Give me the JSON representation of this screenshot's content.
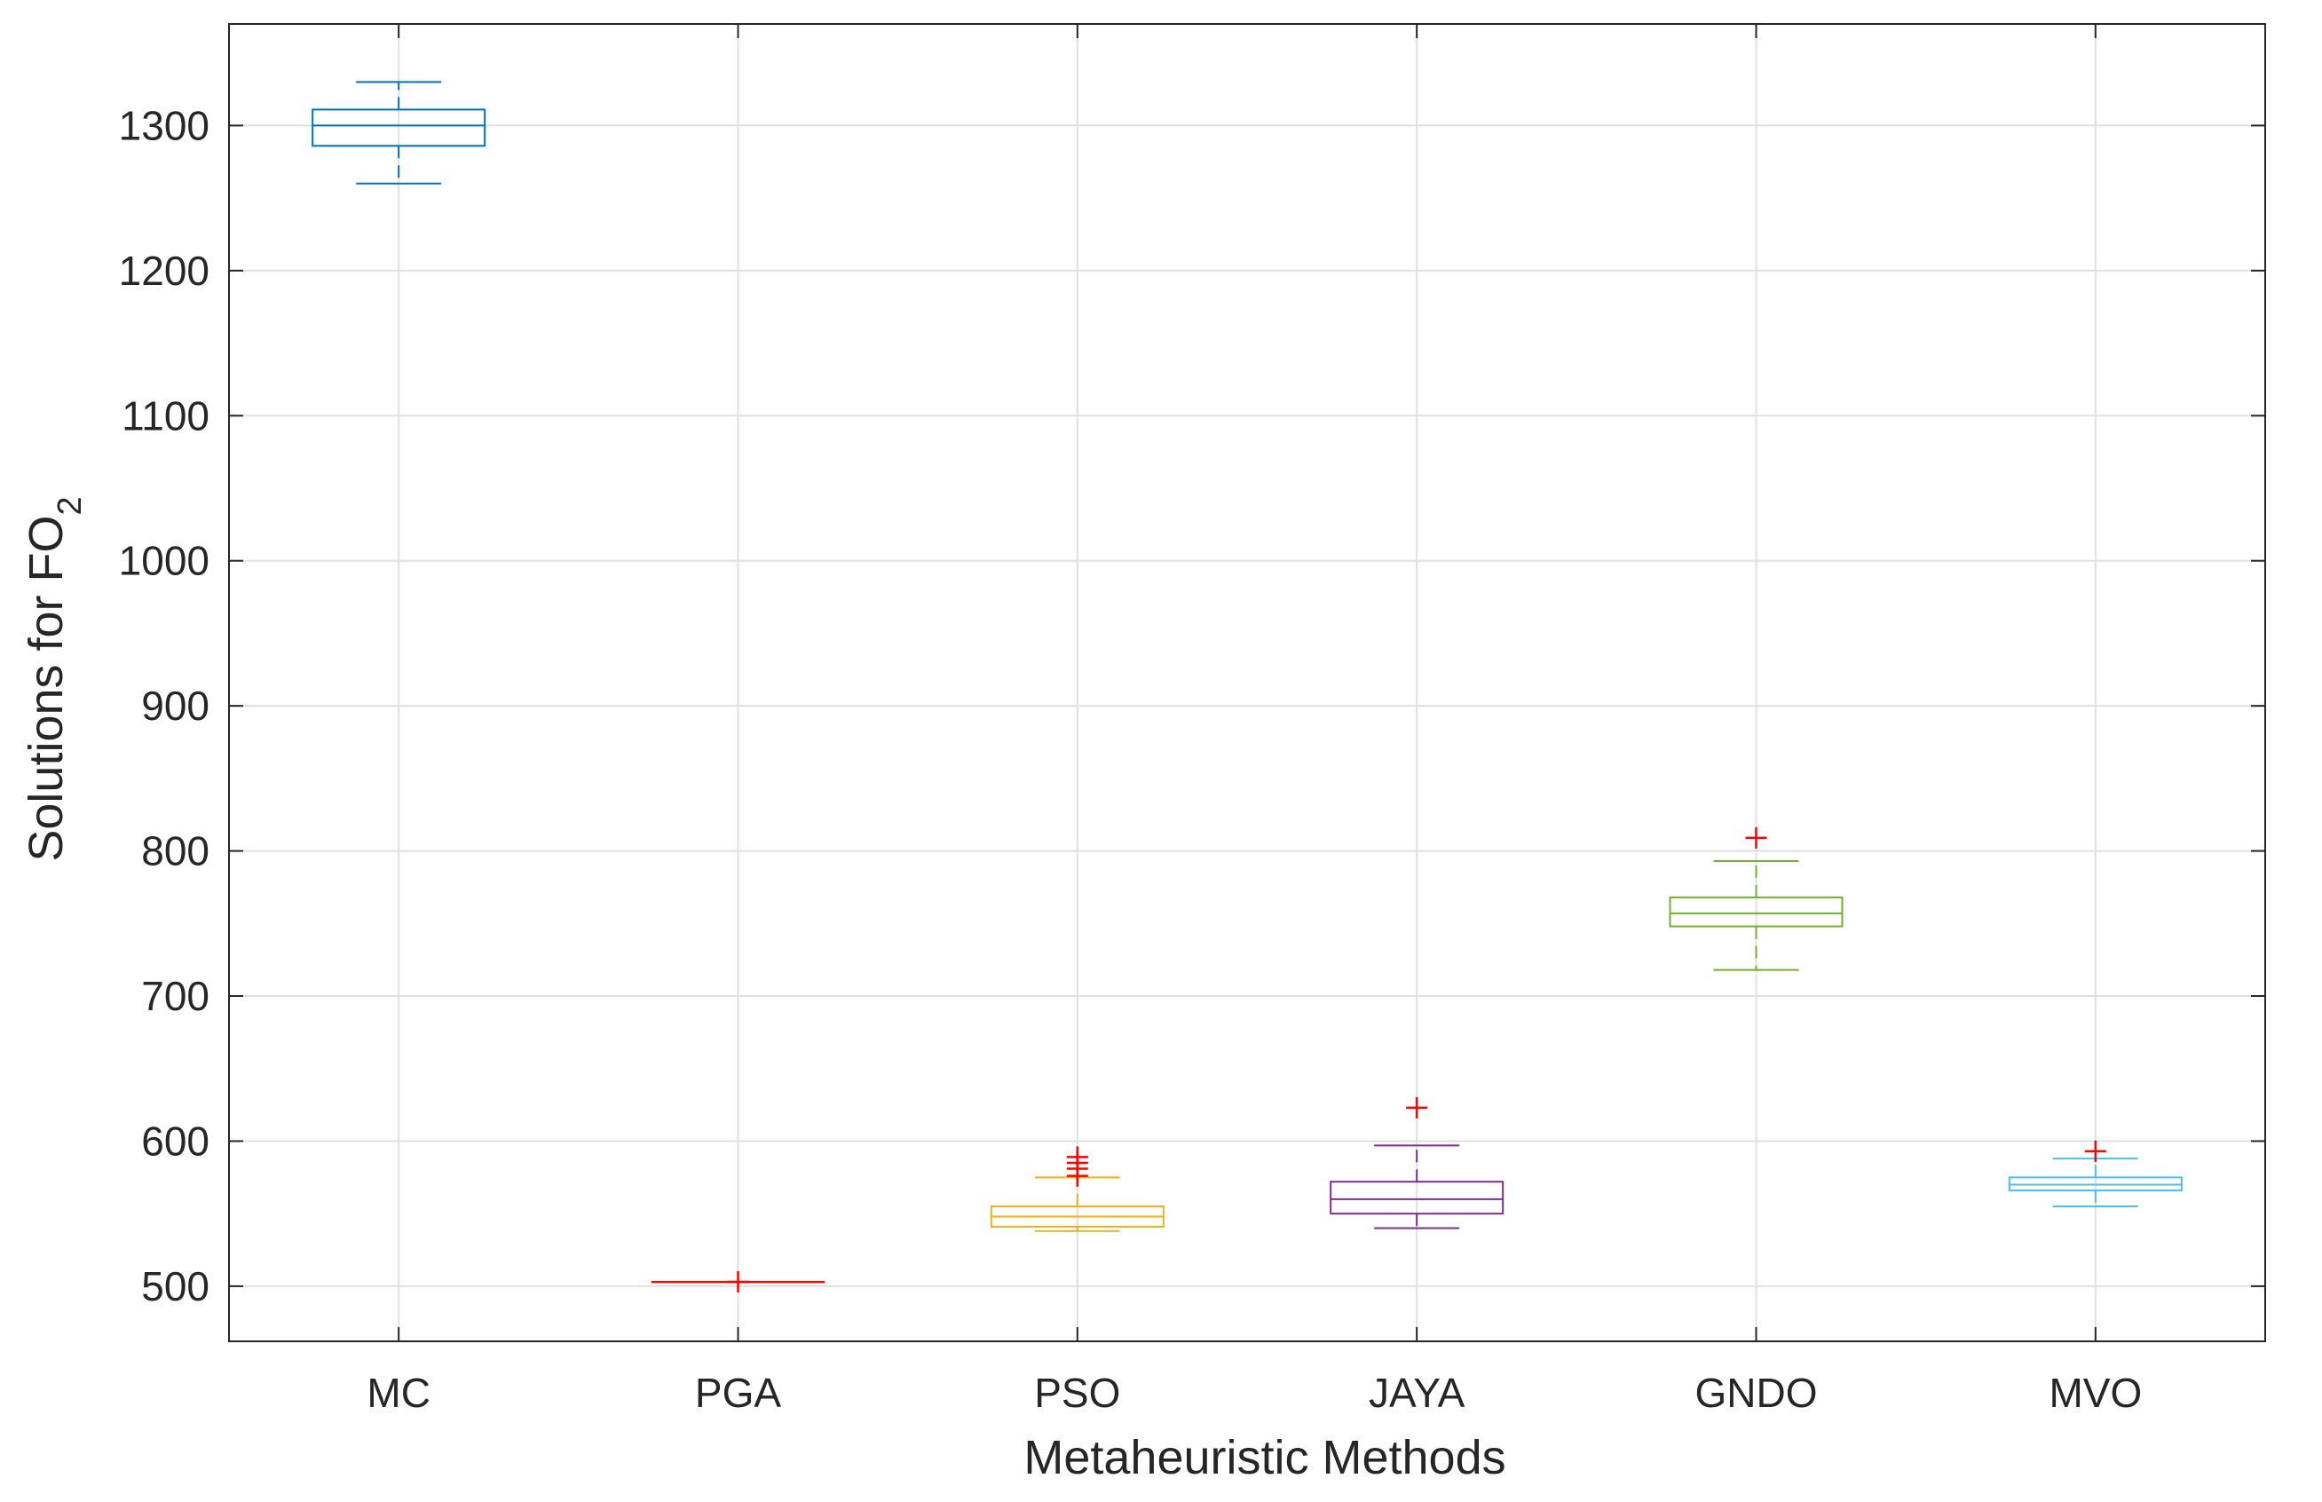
{
  "chart_data": {
    "type": "box",
    "xlabel": "Metaheuristic Methods",
    "ylabel": {
      "text": "Solutions for FO",
      "subscript": "2"
    },
    "ylim": [
      462,
      1370
    ],
    "yticks": [
      500,
      600,
      700,
      800,
      900,
      1000,
      1100,
      1200,
      1300
    ],
    "grid": true,
    "categories": [
      "MC",
      "PGA",
      "PSO",
      "JAYA",
      "GNDO",
      "MVO"
    ],
    "outlier_color": "#ff0000",
    "boxes": [
      {
        "name": "MC",
        "color": "#0072bd",
        "whisker_low": 1260,
        "q1": 1286,
        "median": 1300,
        "q3": 1311,
        "whisker_high": 1330,
        "outliers": []
      },
      {
        "name": "PGA",
        "color": "#d95319",
        "whisker_low": 503,
        "q1": 503,
        "median": 503,
        "q3": 503,
        "whisker_high": 503,
        "outliers": [
          503
        ]
      },
      {
        "name": "PSO",
        "color": "#edb120",
        "whisker_low": 538,
        "q1": 541,
        "median": 548,
        "q3": 555,
        "whisker_high": 575,
        "outliers": [
          576,
          581,
          585,
          589
        ]
      },
      {
        "name": "JAYA",
        "color": "#7e2f8e",
        "whisker_low": 540,
        "q1": 550,
        "median": 560,
        "q3": 572,
        "whisker_high": 597,
        "outliers": [
          623
        ]
      },
      {
        "name": "GNDO",
        "color": "#77ac30",
        "whisker_low": 718,
        "q1": 748,
        "median": 757,
        "q3": 768,
        "whisker_high": 793,
        "outliers": [
          809
        ]
      },
      {
        "name": "MVO",
        "color": "#4dbeee",
        "whisker_low": 555,
        "q1": 566,
        "median": 570,
        "q3": 575,
        "whisker_high": 588,
        "outliers": [
          593
        ]
      }
    ]
  }
}
